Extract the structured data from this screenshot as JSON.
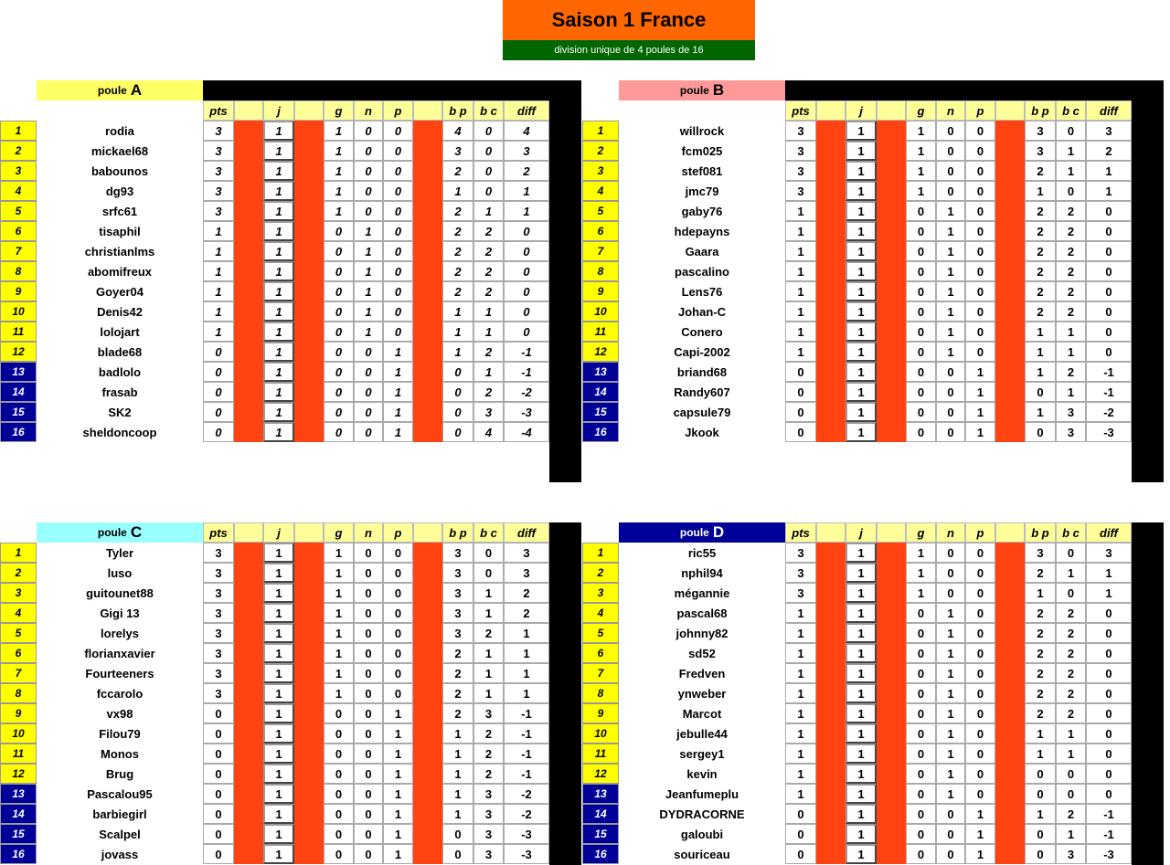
{
  "header": {
    "title": "Saison 1 France",
    "subtitle": "division unique de 4 poules de 16"
  },
  "columns": [
    "pts",
    "j",
    "g",
    "n",
    "p",
    "b p",
    "b c",
    "diff"
  ],
  "colors": {
    "rank_top": "#ffff00",
    "rank_bottom": "#000099",
    "separator": "#ff4411",
    "column_header": "#ffff99"
  },
  "poules": [
    {
      "label": "poule",
      "letter": "A",
      "color": "#ffff66",
      "text_color": "#000000",
      "rows": [
        [
          "1",
          "rodia",
          "3",
          "1",
          "1",
          "0",
          "0",
          "4",
          "0",
          "4"
        ],
        [
          "2",
          "mickael68",
          "3",
          "1",
          "1",
          "0",
          "0",
          "3",
          "0",
          "3"
        ],
        [
          "3",
          "babounos",
          "3",
          "1",
          "1",
          "0",
          "0",
          "2",
          "0",
          "2"
        ],
        [
          "4",
          "dg93",
          "3",
          "1",
          "1",
          "0",
          "0",
          "1",
          "0",
          "1"
        ],
        [
          "5",
          "srfc61",
          "3",
          "1",
          "1",
          "0",
          "0",
          "2",
          "1",
          "1"
        ],
        [
          "6",
          "tisaphil",
          "1",
          "1",
          "0",
          "1",
          "0",
          "2",
          "2",
          "0"
        ],
        [
          "7",
          "christianlms",
          "1",
          "1",
          "0",
          "1",
          "0",
          "2",
          "2",
          "0"
        ],
        [
          "8",
          "abomifreux",
          "1",
          "1",
          "0",
          "1",
          "0",
          "2",
          "2",
          "0"
        ],
        [
          "9",
          "Goyer04",
          "1",
          "1",
          "0",
          "1",
          "0",
          "2",
          "2",
          "0"
        ],
        [
          "10",
          "Denis42",
          "1",
          "1",
          "0",
          "1",
          "0",
          "1",
          "1",
          "0"
        ],
        [
          "11",
          "lolojart",
          "1",
          "1",
          "0",
          "1",
          "0",
          "1",
          "1",
          "0"
        ],
        [
          "12",
          "blade68",
          "0",
          "1",
          "0",
          "0",
          "1",
          "1",
          "2",
          "-1"
        ],
        [
          "13",
          "badlolo",
          "0",
          "1",
          "0",
          "0",
          "1",
          "0",
          "1",
          "-1"
        ],
        [
          "14",
          "frasab",
          "0",
          "1",
          "0",
          "0",
          "1",
          "0",
          "2",
          "-2"
        ],
        [
          "15",
          "SK2",
          "0",
          "1",
          "0",
          "0",
          "1",
          "0",
          "3",
          "-3"
        ],
        [
          "16",
          "sheldoncoop",
          "0",
          "1",
          "0",
          "0",
          "1",
          "0",
          "4",
          "-4"
        ]
      ]
    },
    {
      "label": "poule",
      "letter": "B",
      "color": "#ff9999",
      "text_color": "#000000",
      "rows": [
        [
          "1",
          "willrock",
          "3",
          "1",
          "1",
          "0",
          "0",
          "3",
          "0",
          "3"
        ],
        [
          "2",
          "fcm025",
          "3",
          "1",
          "1",
          "0",
          "0",
          "3",
          "1",
          "2"
        ],
        [
          "3",
          "stef081",
          "3",
          "1",
          "1",
          "0",
          "0",
          "2",
          "1",
          "1"
        ],
        [
          "4",
          "jmc79",
          "3",
          "1",
          "1",
          "0",
          "0",
          "1",
          "0",
          "1"
        ],
        [
          "5",
          "gaby76",
          "1",
          "1",
          "0",
          "1",
          "0",
          "2",
          "2",
          "0"
        ],
        [
          "6",
          "hdepayns",
          "1",
          "1",
          "0",
          "1",
          "0",
          "2",
          "2",
          "0"
        ],
        [
          "7",
          "Gaara",
          "1",
          "1",
          "0",
          "1",
          "0",
          "2",
          "2",
          "0"
        ],
        [
          "8",
          "pascalino",
          "1",
          "1",
          "0",
          "1",
          "0",
          "2",
          "2",
          "0"
        ],
        [
          "9",
          "Lens76",
          "1",
          "1",
          "0",
          "1",
          "0",
          "2",
          "2",
          "0"
        ],
        [
          "10",
          "Johan-C",
          "1",
          "1",
          "0",
          "1",
          "0",
          "2",
          "2",
          "0"
        ],
        [
          "11",
          "Conero",
          "1",
          "1",
          "0",
          "1",
          "0",
          "1",
          "1",
          "0"
        ],
        [
          "12",
          "Capi-2002",
          "1",
          "1",
          "0",
          "1",
          "0",
          "1",
          "1",
          "0"
        ],
        [
          "13",
          "briand68",
          "0",
          "1",
          "0",
          "0",
          "1",
          "1",
          "2",
          "-1"
        ],
        [
          "14",
          "Randy607",
          "0",
          "1",
          "0",
          "0",
          "1",
          "0",
          "1",
          "-1"
        ],
        [
          "15",
          "capsule79",
          "0",
          "1",
          "0",
          "0",
          "1",
          "1",
          "3",
          "-2"
        ],
        [
          "16",
          "Jkook",
          "0",
          "1",
          "0",
          "0",
          "1",
          "0",
          "3",
          "-3"
        ]
      ]
    },
    {
      "label": "poule",
      "letter": "C",
      "color": "#99ffff",
      "text_color": "#000000",
      "rows": [
        [
          "1",
          "Tyler",
          "3",
          "1",
          "1",
          "0",
          "0",
          "3",
          "0",
          "3"
        ],
        [
          "2",
          "luso",
          "3",
          "1",
          "1",
          "0",
          "0",
          "3",
          "0",
          "3"
        ],
        [
          "3",
          "guitounet88",
          "3",
          "1",
          "1",
          "0",
          "0",
          "3",
          "1",
          "2"
        ],
        [
          "4",
          "Gigi 13",
          "3",
          "1",
          "1",
          "0",
          "0",
          "3",
          "1",
          "2"
        ],
        [
          "5",
          "lorelys",
          "3",
          "1",
          "1",
          "0",
          "0",
          "3",
          "2",
          "1"
        ],
        [
          "6",
          "florianxavier",
          "3",
          "1",
          "1",
          "0",
          "0",
          "2",
          "1",
          "1"
        ],
        [
          "7",
          "Fourteeners",
          "3",
          "1",
          "1",
          "0",
          "0",
          "2",
          "1",
          "1"
        ],
        [
          "8",
          "fccarolo",
          "3",
          "1",
          "1",
          "0",
          "0",
          "2",
          "1",
          "1"
        ],
        [
          "9",
          "vx98",
          "0",
          "1",
          "0",
          "0",
          "1",
          "2",
          "3",
          "-1"
        ],
        [
          "10",
          "Filou79",
          "0",
          "1",
          "0",
          "0",
          "1",
          "1",
          "2",
          "-1"
        ],
        [
          "11",
          "Monos",
          "0",
          "1",
          "0",
          "0",
          "1",
          "1",
          "2",
          "-1"
        ],
        [
          "12",
          "Brug",
          "0",
          "1",
          "0",
          "0",
          "1",
          "1",
          "2",
          "-1"
        ],
        [
          "13",
          "Pascalou95",
          "0",
          "1",
          "0",
          "0",
          "1",
          "1",
          "3",
          "-2"
        ],
        [
          "14",
          "barbiegirl",
          "0",
          "1",
          "0",
          "0",
          "1",
          "1",
          "3",
          "-2"
        ],
        [
          "15",
          "Scalpel",
          "0",
          "1",
          "0",
          "0",
          "1",
          "0",
          "3",
          "-3"
        ],
        [
          "16",
          "jovass",
          "0",
          "1",
          "0",
          "0",
          "1",
          "0",
          "3",
          "-3"
        ]
      ]
    },
    {
      "label": "poule",
      "letter": "D",
      "color": "#000099",
      "text_color": "#ffffff",
      "rows": [
        [
          "1",
          "ric55",
          "3",
          "1",
          "1",
          "0",
          "0",
          "3",
          "0",
          "3"
        ],
        [
          "2",
          "nphil94",
          "3",
          "1",
          "1",
          "0",
          "0",
          "2",
          "1",
          "1"
        ],
        [
          "3",
          "mégannie",
          "3",
          "1",
          "1",
          "0",
          "0",
          "1",
          "0",
          "1"
        ],
        [
          "4",
          "pascal68",
          "1",
          "1",
          "0",
          "1",
          "0",
          "2",
          "2",
          "0"
        ],
        [
          "5",
          "johnny82",
          "1",
          "1",
          "0",
          "1",
          "0",
          "2",
          "2",
          "0"
        ],
        [
          "6",
          "sd52",
          "1",
          "1",
          "0",
          "1",
          "0",
          "2",
          "2",
          "0"
        ],
        [
          "7",
          "Fredven",
          "1",
          "1",
          "0",
          "1",
          "0",
          "2",
          "2",
          "0"
        ],
        [
          "8",
          "ynweber",
          "1",
          "1",
          "0",
          "1",
          "0",
          "2",
          "2",
          "0"
        ],
        [
          "9",
          "Marcot",
          "1",
          "1",
          "0",
          "1",
          "0",
          "2",
          "2",
          "0"
        ],
        [
          "10",
          "jebulle44",
          "1",
          "1",
          "0",
          "1",
          "0",
          "1",
          "1",
          "0"
        ],
        [
          "11",
          "sergey1",
          "1",
          "1",
          "0",
          "1",
          "0",
          "1",
          "1",
          "0"
        ],
        [
          "12",
          "kevin",
          "1",
          "1",
          "0",
          "1",
          "0",
          "0",
          "0",
          "0"
        ],
        [
          "13",
          "Jeanfumeplu",
          "1",
          "1",
          "0",
          "1",
          "0",
          "0",
          "0",
          "0"
        ],
        [
          "14",
          "DYDRACORNE",
          "0",
          "1",
          "0",
          "0",
          "1",
          "1",
          "2",
          "-1"
        ],
        [
          "15",
          "galoubi",
          "0",
          "1",
          "0",
          "0",
          "1",
          "0",
          "1",
          "-1"
        ],
        [
          "16",
          "souriceau",
          "0",
          "1",
          "0",
          "0",
          "1",
          "0",
          "3",
          "-3"
        ]
      ]
    }
  ]
}
